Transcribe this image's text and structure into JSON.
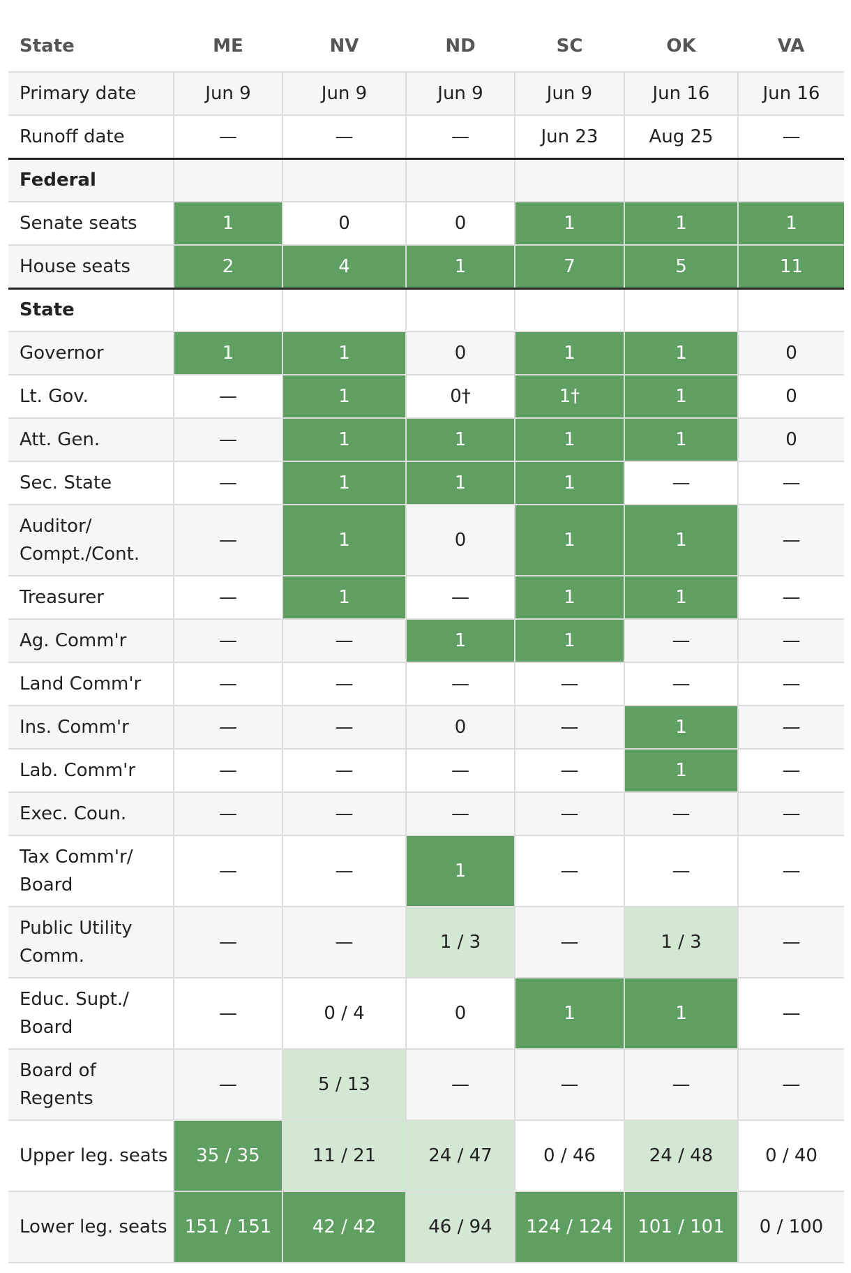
{
  "table": {
    "header": [
      "State",
      "ME",
      "NV",
      "ND",
      "SC",
      "OK",
      "VA"
    ],
    "rows": [
      {
        "label": "Primary date",
        "cells": [
          "Jun 9",
          "Jun 9",
          "Jun 9",
          "Jun 9",
          "Jun 16",
          "Jun 16"
        ],
        "colors": [
          null,
          null,
          null,
          null,
          null,
          null
        ]
      },
      {
        "label": "Runoff date",
        "cells": [
          "—",
          "—",
          "—",
          "Jun 23",
          "Aug 25",
          "—"
        ],
        "colors": [
          null,
          null,
          null,
          null,
          null,
          null
        ]
      },
      {
        "section": "Federal"
      },
      {
        "label": "Senate seats",
        "cells": [
          "1",
          "0",
          "0",
          "1",
          "1",
          "1"
        ],
        "colors": [
          "#5f9f61",
          null,
          null,
          "#5f9f61",
          "#5f9f61",
          "#5f9f61"
        ]
      },
      {
        "label": "House seats",
        "cells": [
          "2",
          "4",
          "1",
          "7",
          "5",
          "11"
        ],
        "colors": [
          "#5f9f61",
          "#5f9f61",
          "#5f9f61",
          "#5f9f61",
          "#5f9f61",
          "#5f9f61"
        ]
      },
      {
        "section": "State"
      },
      {
        "label": "Governor",
        "cells": [
          "1",
          "1",
          "0",
          "1",
          "1",
          "0"
        ],
        "colors": [
          "#5f9f61",
          "#5f9f61",
          null,
          "#5f9f61",
          "#5f9f61",
          null
        ]
      },
      {
        "label": "Lt. Gov.",
        "cells": [
          "—",
          "1",
          "0†",
          "1†",
          "1",
          "0"
        ],
        "colors": [
          null,
          "#5f9f61",
          null,
          "#5f9f61",
          "#5f9f61",
          null
        ]
      },
      {
        "label": "Att. Gen.",
        "cells": [
          "—",
          "1",
          "1",
          "1",
          "1",
          "0"
        ],
        "colors": [
          null,
          "#5f9f61",
          "#5f9f61",
          "#5f9f61",
          "#5f9f61",
          null
        ]
      },
      {
        "label": "Sec. State",
        "cells": [
          "—",
          "1",
          "1",
          "1",
          "—",
          "—"
        ],
        "colors": [
          null,
          "#5f9f61",
          "#5f9f61",
          "#5f9f61",
          null,
          null
        ]
      },
      {
        "label": "Auditor/ Compt./Cont.",
        "cells": [
          "—",
          "1",
          "0",
          "1",
          "1",
          "—"
        ],
        "colors": [
          null,
          "#5f9f61",
          null,
          "#5f9f61",
          "#5f9f61",
          null
        ]
      },
      {
        "label": "Treasurer",
        "cells": [
          "—",
          "1",
          "—",
          "1",
          "1",
          "—"
        ],
        "colors": [
          null,
          "#5f9f61",
          null,
          "#5f9f61",
          "#5f9f61",
          null
        ]
      },
      {
        "label": "Ag. Comm'r",
        "cells": [
          "—",
          "—",
          "1",
          "1",
          "—",
          "—"
        ],
        "colors": [
          null,
          null,
          "#5f9f61",
          "#5f9f61",
          null,
          null
        ]
      },
      {
        "label": "Land Comm'r",
        "cells": [
          "—",
          "—",
          "—",
          "—",
          "—",
          "—"
        ],
        "colors": [
          null,
          null,
          null,
          null,
          null,
          null
        ]
      },
      {
        "label": "Ins. Comm'r",
        "cells": [
          "—",
          "—",
          "0",
          "—",
          "1",
          "—"
        ],
        "colors": [
          null,
          null,
          null,
          null,
          "#5f9f61",
          null
        ]
      },
      {
        "label": "Lab. Comm'r",
        "cells": [
          "—",
          "—",
          "—",
          "—",
          "1",
          "—"
        ],
        "colors": [
          null,
          null,
          null,
          null,
          "#5f9f61",
          null
        ]
      },
      {
        "label": "Exec. Coun.",
        "cells": [
          "—",
          "—",
          "—",
          "—",
          "—",
          "—"
        ],
        "colors": [
          null,
          null,
          null,
          null,
          null,
          null
        ]
      },
      {
        "label": "Tax Comm'r/ Board",
        "cells": [
          "—",
          "—",
          "1",
          "—",
          "—",
          "—"
        ],
        "colors": [
          null,
          null,
          "#5f9f61",
          null,
          null,
          null
        ]
      },
      {
        "label": "Public Utility Comm.",
        "cells": [
          "—",
          "—",
          "1 / 3",
          "—",
          "1 / 3",
          "—"
        ],
        "colors": [
          null,
          null,
          "#d3e8d3",
          null,
          "#d3e8d3",
          null
        ]
      },
      {
        "label": "Educ. Supt./ Board",
        "cells": [
          "—",
          "0 / 4",
          "0",
          "1",
          "1",
          "—"
        ],
        "colors": [
          null,
          null,
          null,
          "#5f9f61",
          "#5f9f61",
          null
        ]
      },
      {
        "label": "Board of Regents",
        "cells": [
          "—",
          "5 / 13",
          "—",
          "—",
          "—",
          "—"
        ],
        "colors": [
          null,
          "#d3e8d3",
          null,
          null,
          null,
          null
        ]
      },
      {
        "label": "Upper leg. seats",
        "cells": [
          "35 / 35",
          "11 / 21",
          "24 / 47",
          "0 / 46",
          "24 / 48",
          "0 / 40"
        ],
        "colors": [
          "#5f9f61",
          "#d3e8d3",
          "#d3e8d3",
          null,
          "#d3e8d3",
          null
        ]
      },
      {
        "label": "Lower leg. seats",
        "cells": [
          "151 / 151",
          "42 / 42",
          "46 / 94",
          "124 / 124",
          "101 / 101",
          "0 / 100"
        ],
        "colors": [
          "#5f9f61",
          "#5f9f61",
          "#d3e8d3",
          "#5f9f61",
          "#5f9f61",
          null
        ]
      }
    ]
  }
}
